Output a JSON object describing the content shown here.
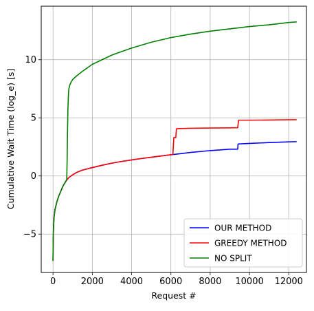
{
  "chart_data": {
    "type": "line",
    "xlabel": "Request #",
    "ylabel": "Cumulative Wait Time (log_e) [s]",
    "xlim": [
      -600,
      12900
    ],
    "ylim": [
      -8.3,
      14.6
    ],
    "x_ticks": [
      0,
      2000,
      4000,
      6000,
      8000,
      10000,
      12000
    ],
    "x_tick_labels": [
      "0",
      "2000",
      "4000",
      "6000",
      "8000",
      "10000",
      "12000"
    ],
    "y_ticks": [
      -5,
      0,
      5,
      10
    ],
    "y_tick_labels": [
      "−5",
      "0",
      "5",
      "10"
    ],
    "grid": true,
    "legend_position": "lower-right",
    "series": [
      {
        "name": "OUR METHOD",
        "color": "#0000ff",
        "x": [
          0,
          10,
          25,
          50,
          100,
          200,
          300,
          400,
          500,
          600,
          700,
          800,
          1000,
          1200,
          1500,
          2000,
          2500,
          3000,
          3500,
          4000,
          4500,
          5000,
          5500,
          6000,
          6200,
          7000,
          8000,
          9000,
          9400,
          9420,
          10000,
          11000,
          12000,
          12400
        ],
        "y": [
          -7.3,
          -5.6,
          -4.5,
          -3.6,
          -2.9,
          -2.2,
          -1.7,
          -1.3,
          -0.9,
          -0.6,
          -0.35,
          -0.15,
          0.1,
          0.3,
          0.5,
          0.72,
          0.92,
          1.1,
          1.25,
          1.38,
          1.5,
          1.61,
          1.72,
          1.82,
          1.86,
          2.02,
          2.18,
          2.3,
          2.3,
          2.75,
          2.8,
          2.87,
          2.93,
          2.95
        ]
      },
      {
        "name": "GREEDY METHOD",
        "color": "#ff0000",
        "x": [
          0,
          10,
          25,
          50,
          100,
          200,
          300,
          400,
          500,
          600,
          700,
          800,
          1000,
          1200,
          1500,
          2000,
          2500,
          3000,
          3500,
          4000,
          4500,
          5000,
          5500,
          6000,
          6100,
          6150,
          6250,
          6280,
          6350,
          7000,
          8000,
          9000,
          9400,
          9450,
          10000,
          11000,
          12000,
          12400
        ],
        "y": [
          -7.3,
          -5.6,
          -4.5,
          -3.6,
          -2.9,
          -2.2,
          -1.7,
          -1.3,
          -0.9,
          -0.6,
          -0.35,
          -0.15,
          0.1,
          0.3,
          0.5,
          0.72,
          0.92,
          1.1,
          1.25,
          1.38,
          1.5,
          1.61,
          1.72,
          1.82,
          1.84,
          3.3,
          3.3,
          4.05,
          4.07,
          4.1,
          4.12,
          4.14,
          4.15,
          4.8,
          4.8,
          4.81,
          4.83,
          4.84
        ]
      },
      {
        "name": "NO SPLIT",
        "color": "#008000",
        "x": [
          0,
          10,
          25,
          50,
          100,
          200,
          300,
          400,
          500,
          600,
          700,
          720,
          740,
          760,
          780,
          800,
          850,
          900,
          1000,
          1200,
          1500,
          2000,
          2500,
          3000,
          3500,
          4000,
          5000,
          6000,
          7000,
          8000,
          9000,
          10000,
          11000,
          12000,
          12400
        ],
        "y": [
          -7.3,
          -5.6,
          -4.5,
          -3.6,
          -2.9,
          -2.2,
          -1.7,
          -1.3,
          -0.9,
          -0.6,
          -0.3,
          1.5,
          4.0,
          5.8,
          6.8,
          7.4,
          7.8,
          8.0,
          8.3,
          8.6,
          9.0,
          9.6,
          10.0,
          10.4,
          10.7,
          11.0,
          11.5,
          11.9,
          12.2,
          12.45,
          12.65,
          12.85,
          13.0,
          13.2,
          13.25
        ]
      }
    ]
  }
}
